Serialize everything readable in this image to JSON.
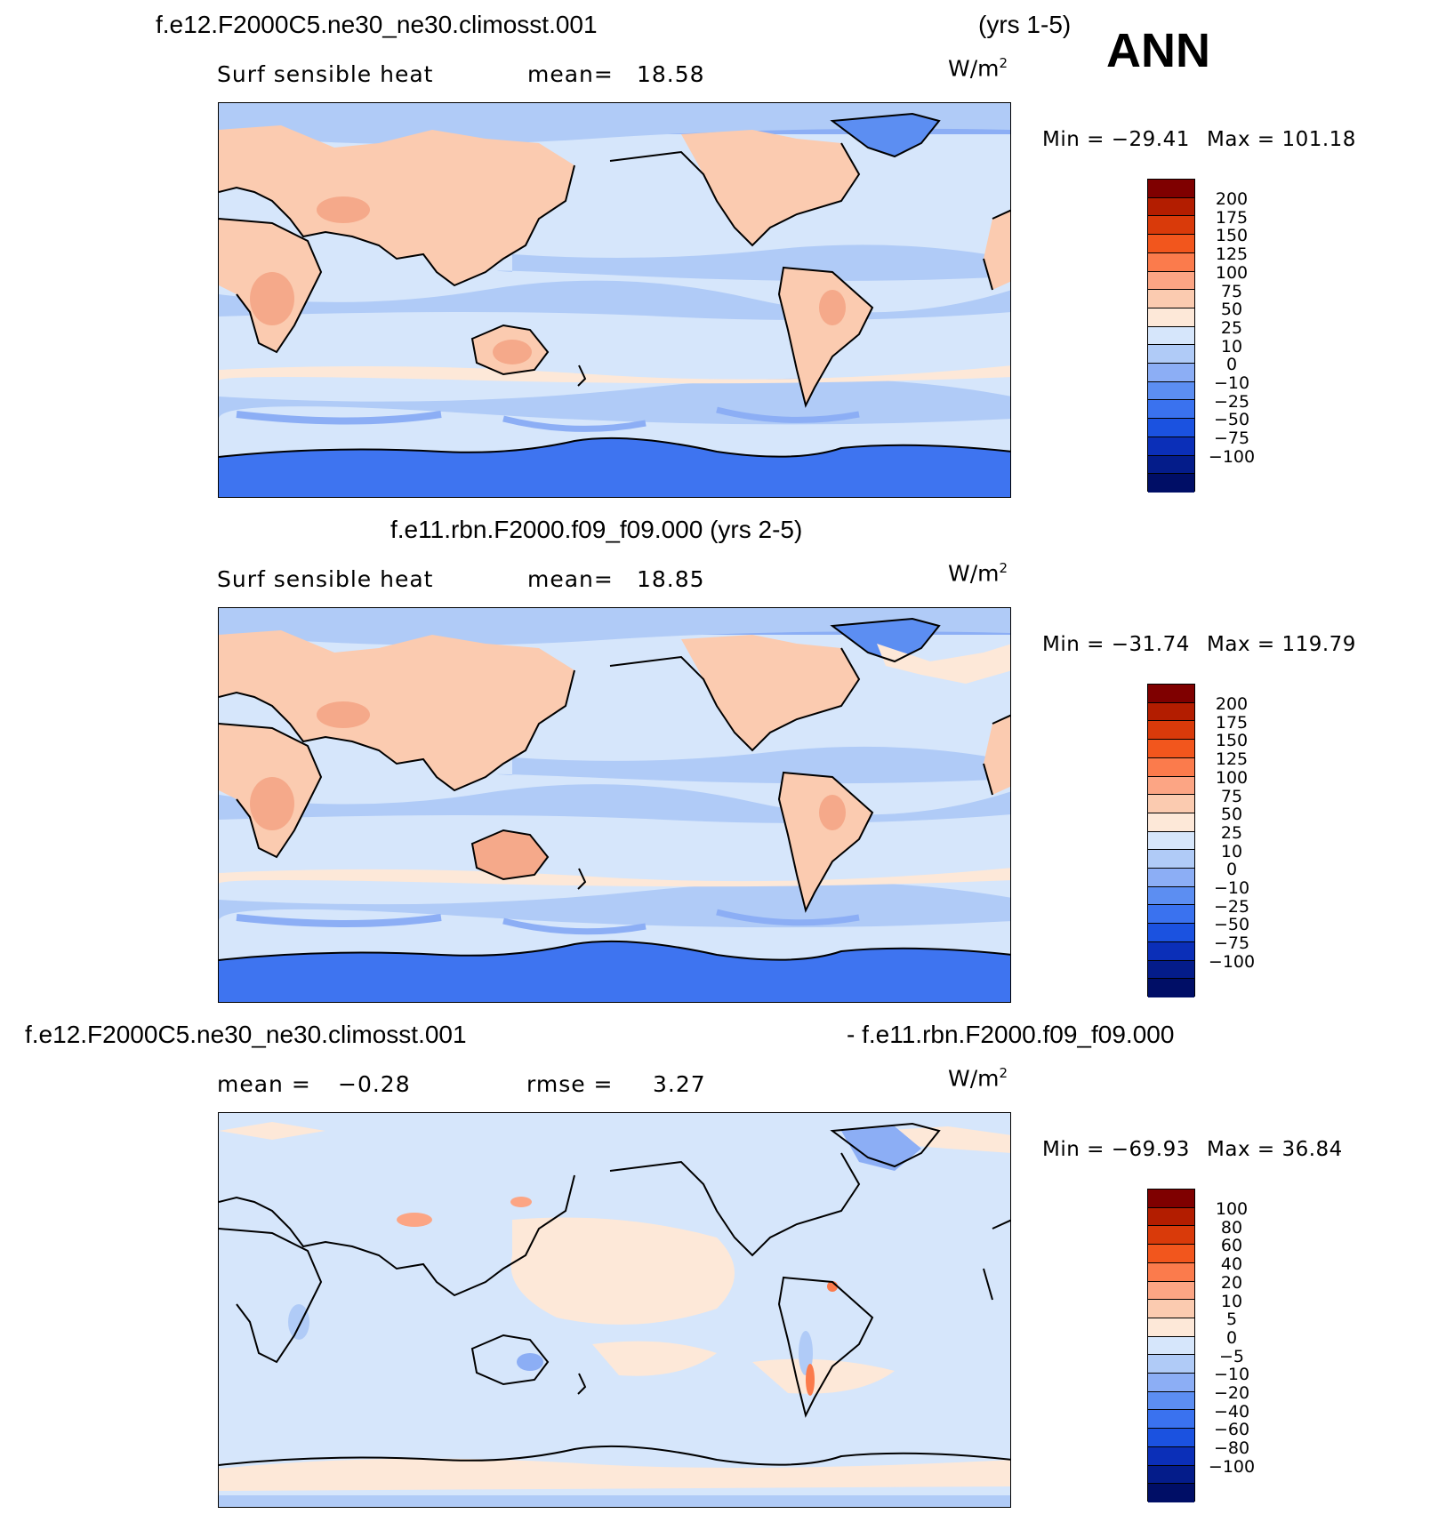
{
  "season": "ANN",
  "panels": [
    {
      "id": "model1",
      "title_left": "f.e12.F2000C5.ne30_ne30.climosst.001",
      "title_right": "(yrs 1-5)",
      "variable": "Surf  sensible  heat",
      "stat_label": "mean=",
      "stat_value": "18.58",
      "units": "W/m",
      "units_sup": "2",
      "min_label": "Min  =",
      "min_value": "−29.41",
      "max_label": "Max  =",
      "max_value": "101.18",
      "colorbar_levels": [
        "200",
        "175",
        "150",
        "125",
        "100",
        "75",
        "50",
        "25",
        "10",
        "0",
        "−10",
        "−25",
        "−50",
        "−75",
        "−100"
      ]
    },
    {
      "id": "model2",
      "title_center": "f.e11.rbn.F2000.f09_f09.000 (yrs 2-5)",
      "variable": "Surf  sensible  heat",
      "stat_label": "mean=",
      "stat_value": "18.85",
      "units": "W/m",
      "units_sup": "2",
      "min_label": "Min  =",
      "min_value": "−31.74",
      "max_label": "Max  =",
      "max_value": "119.79",
      "colorbar_levels": [
        "200",
        "175",
        "150",
        "125",
        "100",
        "75",
        "50",
        "25",
        "10",
        "0",
        "−10",
        "−25",
        "−50",
        "−75",
        "−100"
      ]
    },
    {
      "id": "difference",
      "title_left": "f.e12.F2000C5.ne30_ne30.climosst.001",
      "title_right": "- f.e11.rbn.F2000.f09_f09.000",
      "stat_label": "mean  =",
      "stat_value": "−0.28",
      "stat2_label": "rmse  =",
      "stat2_value": "3.27",
      "units": "W/m",
      "units_sup": "2",
      "min_label": "Min  =",
      "min_value": "−69.93",
      "max_label": "Max  =",
      "max_value": "36.84",
      "colorbar_levels": [
        "100",
        "80",
        "60",
        "40",
        "20",
        "10",
        "5",
        "0",
        "−5",
        "−10",
        "−20",
        "−40",
        "−60",
        "−80",
        "−100"
      ]
    }
  ],
  "colors": {
    "colorbar": [
      "#7f0000",
      "#b31d00",
      "#d93a0a",
      "#f2561d",
      "#fb7b4c",
      "#fca584",
      "#fbcbb0",
      "#fde8d8",
      "#d6e6fb",
      "#b0cbf7",
      "#8caef5",
      "#5c8ef2",
      "#3a72ef",
      "#1b52e0",
      "#0b2fb8",
      "#041c8a",
      "#000e66"
    ],
    "ocean_main": "#d6e6fb",
    "land_warm": "#fbcbb0",
    "land_warm2": "#f5a98a",
    "band_blue": "#b0cbf7",
    "band_blue2": "#8caef5",
    "polar": "#3e74f0",
    "diff_ocean": "#d6e6fb",
    "diff_pos": "#fde8d8",
    "coast": "#000000"
  }
}
